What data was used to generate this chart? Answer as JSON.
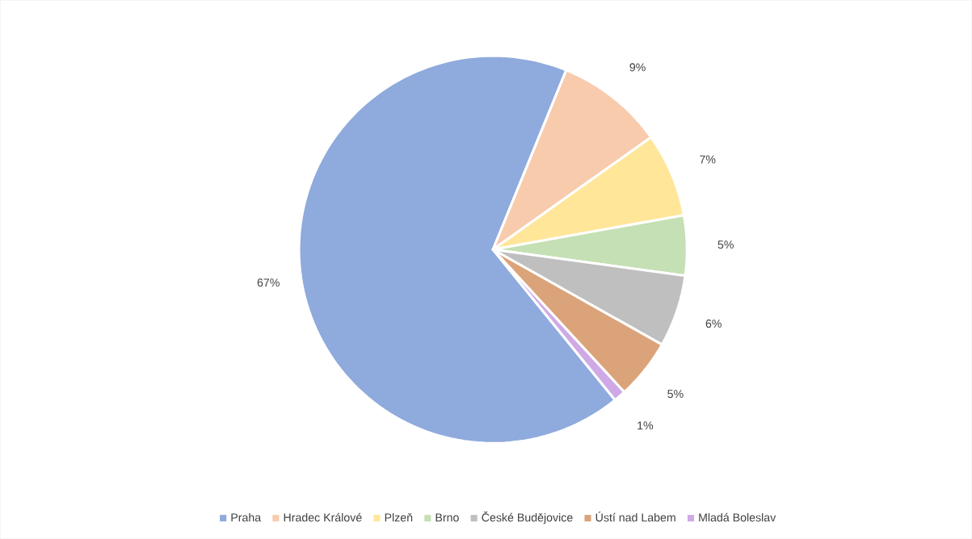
{
  "chart_data": {
    "type": "pie",
    "categories": [
      "Praha",
      "Hradec Králové",
      "Plzeň",
      "Brno",
      "České Budějovice",
      "Ústí nad Labem",
      "Mladá Boleslav"
    ],
    "values": [
      67,
      9,
      7,
      5,
      6,
      5,
      1
    ],
    "colors": [
      "#8faadc",
      "#f8cbad",
      "#ffe699",
      "#c5e0b4",
      "#bfbfbf",
      "#dba379",
      "#cfa9e6"
    ],
    "value_labels": [
      "67%",
      "9%",
      "7%",
      "5%",
      "6%",
      "5%",
      "1%"
    ],
    "legend": "bottom"
  }
}
